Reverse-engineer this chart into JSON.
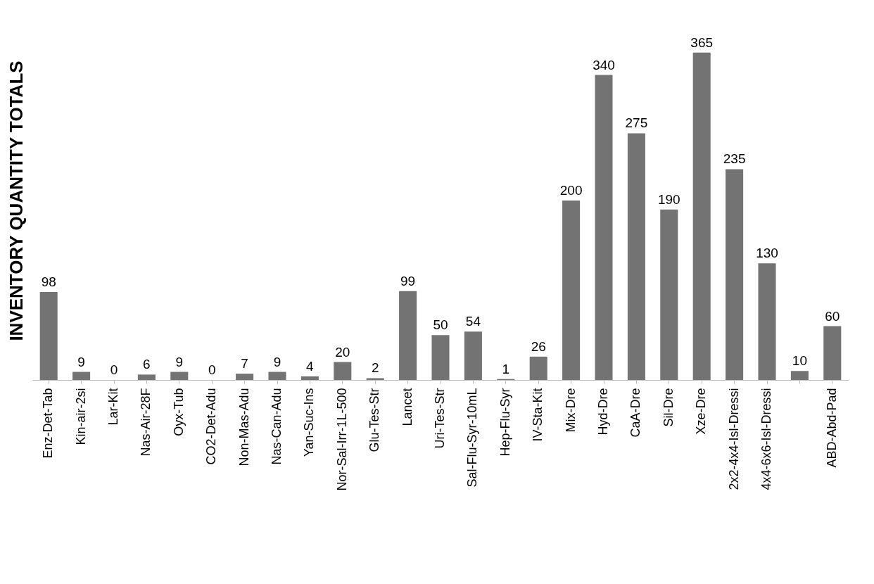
{
  "chart_data": {
    "type": "bar",
    "ylabel": "INVENTORY QUANTITY TOTALS",
    "color": "#737373",
    "data_labels": true,
    "categories": [
      "Enz-Det-Tab",
      "Kin-air-2si",
      "Lar-Kit",
      "Nas-Air-28F",
      "Oyx-Tub",
      "CO2-Det-Adu",
      "Non-Mas-Adu",
      "Nas-Can-Adu",
      "Yan-Suc-Ins",
      "Nor-Sal-Irr-1L-500",
      "Glu-Tes-Str",
      "Lancet",
      "Uri-Tes-Str",
      "Sal-Flu-Syr-10mL",
      "Hep-Flu-Syr",
      "IV-Sta-Kit",
      "Mix-Dre",
      "Hyd-Dre",
      "CaA-Dre",
      "Sil-Dre",
      "Xze-Dre",
      "2x2-4x4-Isl-Dressi",
      "4x4-6x6-Isl-Dressi",
      null,
      "ABD-Abd-Pad"
    ],
    "values": [
      98,
      9,
      0,
      6,
      9,
      0,
      7,
      9,
      4,
      20,
      2,
      99,
      50,
      54,
      1,
      26,
      200,
      340,
      275,
      190,
      365,
      235,
      130,
      10,
      60
    ]
  }
}
